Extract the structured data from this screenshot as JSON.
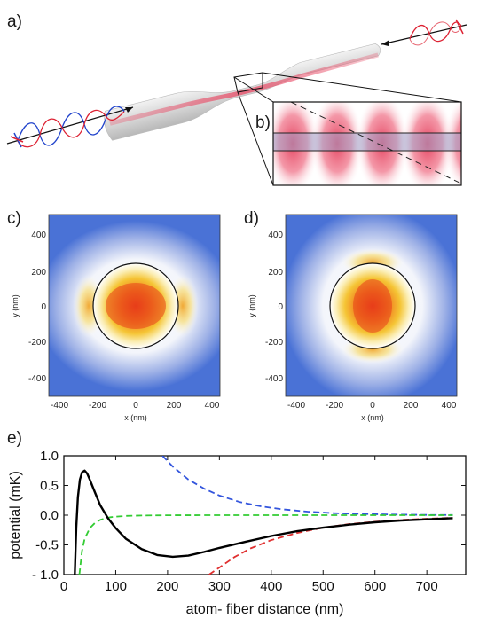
{
  "panels": {
    "a_label": "a)",
    "b_label": "b)",
    "c_label": "c)",
    "d_label": "d)",
    "e_label": "e)"
  },
  "map_c": {
    "x_ticks": [
      "-400",
      "-200",
      "0",
      "200",
      "400"
    ],
    "y_ticks": [
      "400",
      "200",
      "0",
      "-200",
      "-400"
    ],
    "xlabel": "x (nm)",
    "ylabel": "y (nm)"
  },
  "map_d": {
    "x_ticks": [
      "-400",
      "-200",
      "0",
      "200",
      "400"
    ],
    "y_ticks": [
      "400",
      "200",
      "0",
      "-200",
      "-400"
    ],
    "xlabel": "x (nm)",
    "ylabel": "y (nm)"
  },
  "colors": {
    "blue_bg": "#4a72d6",
    "red_field": "#e4405a",
    "fiber": "#d8d8d8",
    "series_blue": "#3355dd",
    "series_green": "#33cc33",
    "series_red": "#e03030",
    "series_black": "#000000"
  },
  "chart_data": {
    "type": "line",
    "xlabel": "atom- fiber distance (nm)",
    "ylabel": "potential (mK)",
    "xlim": [
      0,
      775
    ],
    "ylim": [
      -1.0,
      1.0
    ],
    "x_ticks": [
      "0",
      "100",
      "200",
      "300",
      "400",
      "500",
      "600",
      "700"
    ],
    "y_ticks": [
      "1.0",
      "0.5",
      "0.0",
      "-0.5",
      "- 1.0"
    ],
    "series": [
      {
        "color": "#3355dd",
        "dash": true,
        "x": [
          190,
          210,
          240,
          270,
          300,
          340,
          380,
          420,
          470,
          520,
          580,
          640,
          700,
          750
        ],
        "y": [
          1.0,
          0.82,
          0.6,
          0.45,
          0.33,
          0.22,
          0.15,
          0.1,
          0.06,
          0.035,
          0.02,
          0.01,
          0.005,
          0.003
        ]
      },
      {
        "color": "#33cc33",
        "dash": true,
        "x": [
          30,
          35,
          40,
          50,
          60,
          70,
          80,
          90,
          100,
          120,
          150,
          200,
          300,
          400,
          500,
          600,
          750
        ],
        "y": [
          -1.0,
          -0.6,
          -0.4,
          -0.22,
          -0.13,
          -0.08,
          -0.05,
          -0.035,
          -0.025,
          -0.012,
          -0.006,
          -0.002,
          0.0,
          0.0,
          0.0,
          0.0,
          0.0
        ]
      },
      {
        "color": "#e03030",
        "dash": true,
        "x": [
          280,
          300,
          330,
          360,
          400,
          450,
          500,
          550,
          600,
          650,
          700,
          750
        ],
        "y": [
          -1.0,
          -0.88,
          -0.7,
          -0.56,
          -0.42,
          -0.3,
          -0.21,
          -0.15,
          -0.11,
          -0.08,
          -0.06,
          -0.045
        ]
      },
      {
        "color": "#000000",
        "dash": false,
        "x": [
          21,
          24,
          27,
          31,
          35,
          40,
          45,
          50,
          60,
          70,
          85,
          100,
          120,
          150,
          180,
          210,
          240,
          270,
          300,
          350,
          400,
          450,
          500,
          550,
          600,
          650,
          700,
          750
        ],
        "y": [
          -1.0,
          -0.2,
          0.3,
          0.6,
          0.72,
          0.75,
          0.7,
          0.6,
          0.38,
          0.17,
          -0.05,
          -0.22,
          -0.4,
          -0.57,
          -0.67,
          -0.7,
          -0.68,
          -0.62,
          -0.55,
          -0.45,
          -0.35,
          -0.27,
          -0.21,
          -0.16,
          -0.12,
          -0.09,
          -0.07,
          -0.05
        ]
      }
    ]
  }
}
